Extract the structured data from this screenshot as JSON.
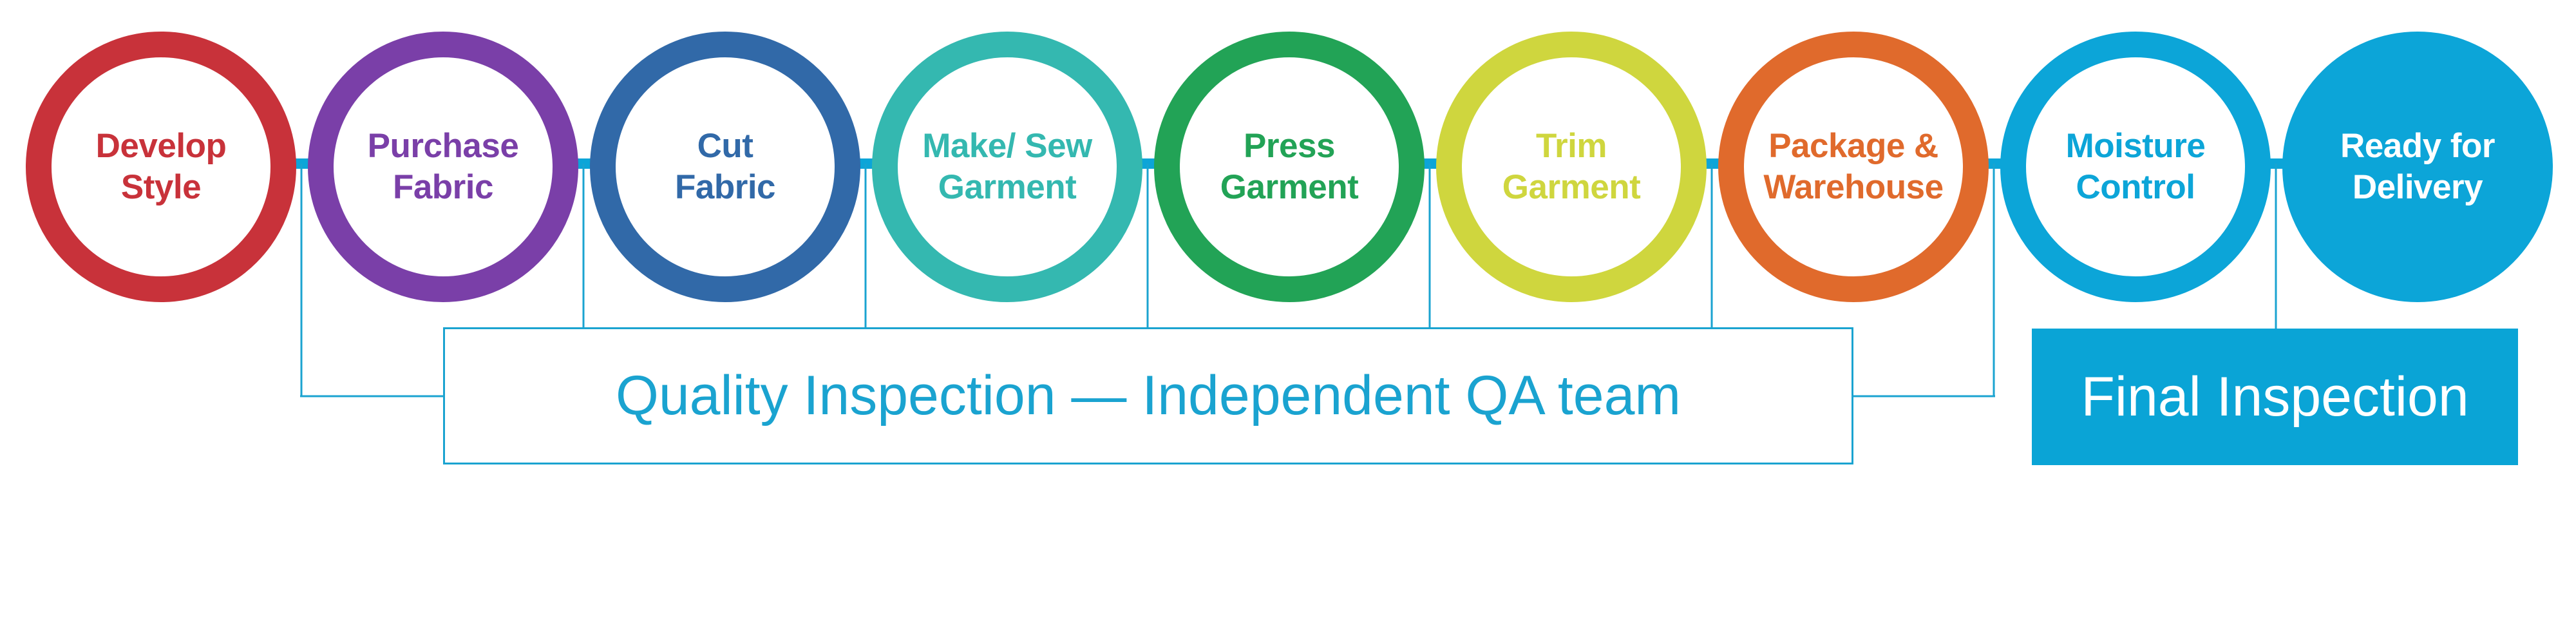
{
  "stages": [
    {
      "label": "Develop\nStyle",
      "color": "#c8323a",
      "filled": false
    },
    {
      "label": "Purchase\nFabric",
      "color": "#7a3fa8",
      "filled": false
    },
    {
      "label": "Cut\nFabric",
      "color": "#3169a8",
      "filled": false
    },
    {
      "label": "Make/ Sew\nGarment",
      "color": "#34b8b0",
      "filled": false
    },
    {
      "label": "Press\nGarment",
      "color": "#22a356",
      "filled": false
    },
    {
      "label": "Trim\nGarment",
      "color": "#cfd63e",
      "filled": false
    },
    {
      "label": "Package &\nWarehouse",
      "color": "#e06a2c",
      "filled": false
    },
    {
      "label": "Moisture\nControl",
      "color": "#0ca5d8",
      "filled": false
    },
    {
      "label": "Ready for\nDelivery",
      "color": "#0ca5d8",
      "filled": true
    }
  ],
  "qa_box": {
    "label": "Quality Inspection — Independent QA team"
  },
  "final_box": {
    "label": "Final Inspection"
  },
  "colors": {
    "connector": "#1aa3d0",
    "timeline": "#0ca5d8"
  }
}
